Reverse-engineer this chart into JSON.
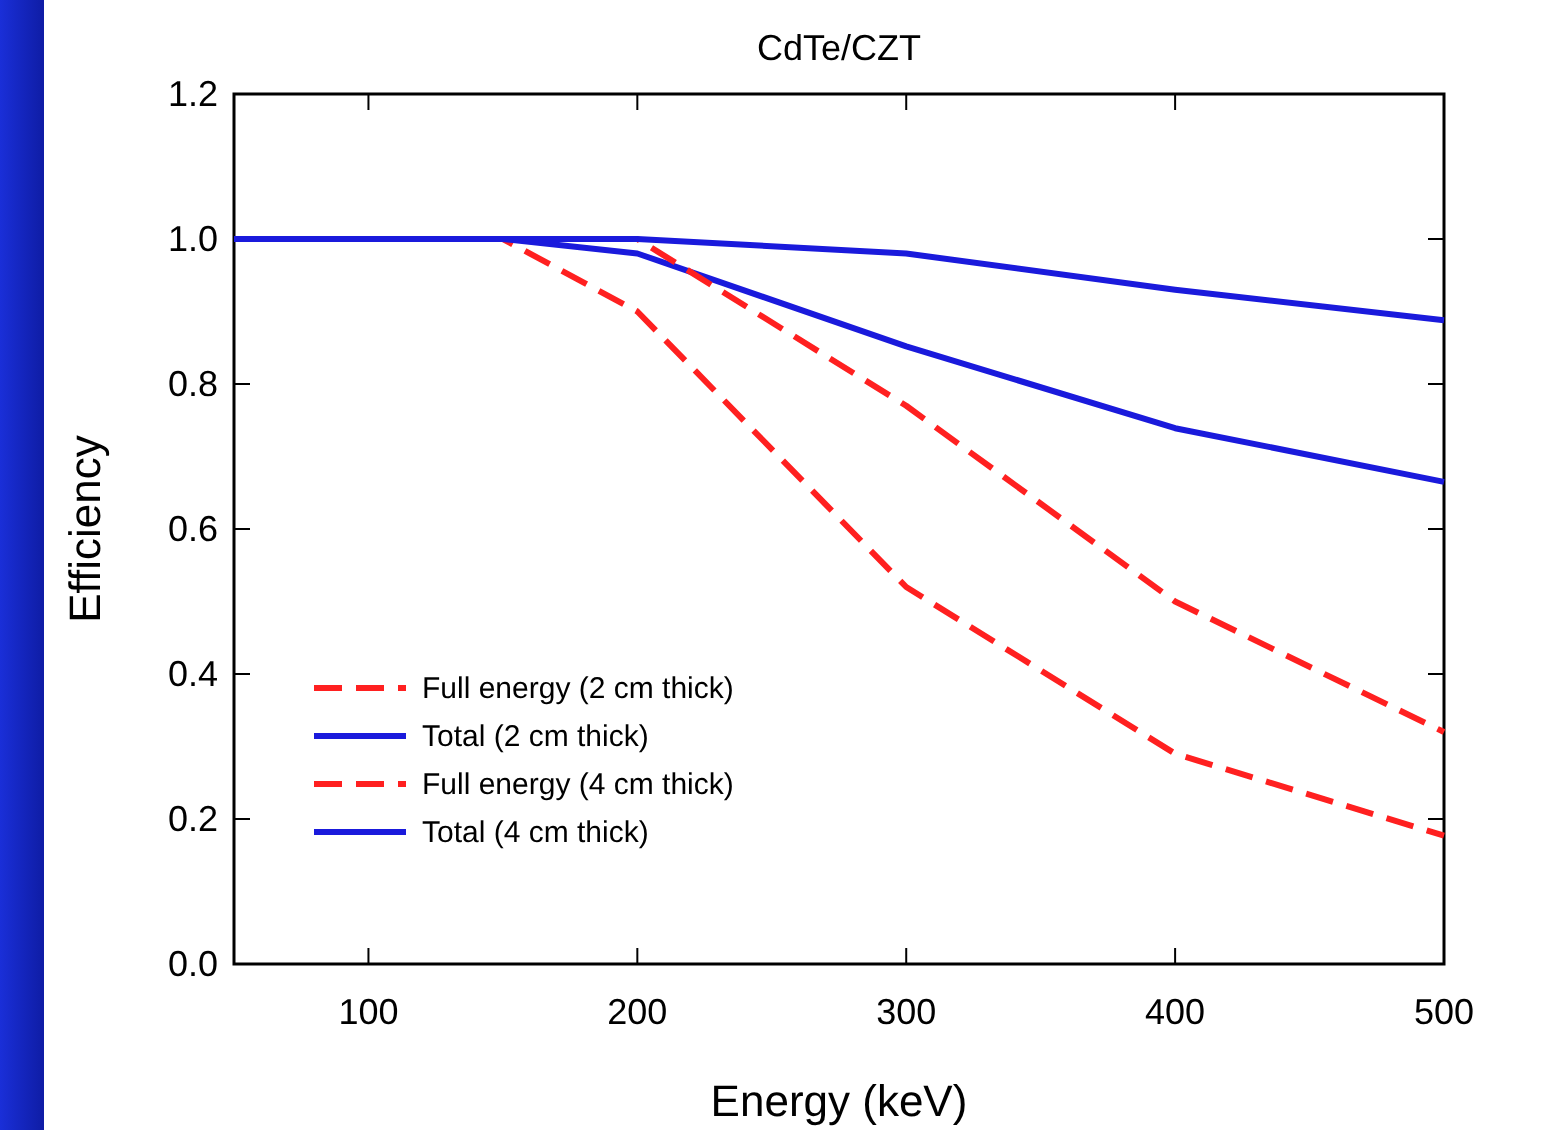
{
  "chart_data": {
    "type": "line",
    "title": "CdTe/CZT",
    "xlabel": "Energy (keV)",
    "ylabel": "Efficiency",
    "xlim": [
      50,
      500
    ],
    "xticks": [
      100,
      200,
      300,
      400,
      500
    ],
    "ylim": [
      0,
      1.2
    ],
    "yticks": [
      {
        "value": 0,
        "label": "0.0"
      },
      0.2,
      0.4,
      0.6,
      0.8,
      {
        "value": 1,
        "label": "1.0"
      },
      1.2
    ],
    "legend": "bottom left",
    "grid": false,
    "marker": "none",
    "series": [
      {
        "name": "Full energy (2 cm thick)",
        "color": "#ff2020",
        "line_style": "dashed",
        "x": [
          50,
          150,
          200,
          300,
          400,
          500
        ],
        "values": [
          1.0,
          1.0,
          0.9,
          0.52,
          0.29,
          0.177
        ]
      },
      {
        "name": "Total (2 cm thick)",
        "color": "#1a1adc",
        "line_style": "solid",
        "x": [
          50,
          150,
          200,
          300,
          400,
          500
        ],
        "values": [
          1.0,
          1.0,
          0.98,
          0.852,
          0.739,
          0.665
        ]
      },
      {
        "name": "Full energy (4 cm thick)",
        "color": "#ff2020",
        "line_style": "dashed",
        "x": [
          50,
          200,
          300,
          400,
          500
        ],
        "values": [
          1.0,
          1.0,
          0.77,
          0.5,
          0.32
        ]
      },
      {
        "name": "Total (4 cm thick)",
        "color": "#1a1adc",
        "line_style": "solid",
        "x": [
          50,
          200,
          300,
          400,
          500
        ],
        "values": [
          1.0,
          1.0,
          0.98,
          0.93,
          0.888
        ]
      }
    ]
  }
}
